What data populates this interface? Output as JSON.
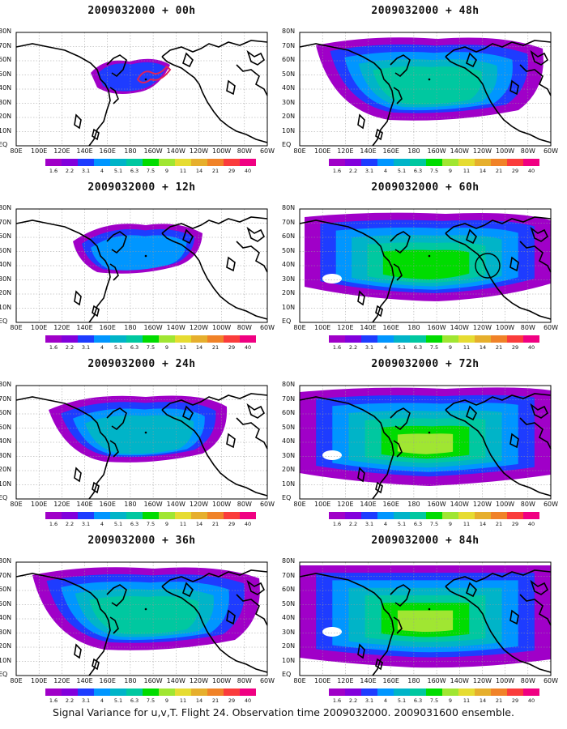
{
  "panels": [
    {
      "title": "2009032000 + 00h",
      "level": 1,
      "circle": false,
      "track": true
    },
    {
      "title": "2009032000 + 48h",
      "level": 4,
      "circle": false,
      "track": false
    },
    {
      "title": "2009032000 + 12h",
      "level": 2,
      "circle": false,
      "track": false
    },
    {
      "title": "2009032000 + 60h",
      "level": 5,
      "circle": true,
      "track": false
    },
    {
      "title": "2009032000 + 24h",
      "level": 3,
      "circle": false,
      "track": false
    },
    {
      "title": "2009032000 + 72h",
      "level": 6,
      "circle": false,
      "track": false
    },
    {
      "title": "2009032000 + 36h",
      "level": 3.5,
      "circle": false,
      "track": false
    },
    {
      "title": "2009032000 + 84h",
      "level": 7,
      "circle": false,
      "track": false
    }
  ],
  "lat_labels": [
    "80N",
    "70N",
    "60N",
    "50N",
    "40N",
    "30N",
    "20N",
    "10N",
    "EQ"
  ],
  "lon_labels": [
    "80E",
    "100E",
    "120E",
    "140E",
    "160E",
    "180",
    "160W",
    "140W",
    "120W",
    "100W",
    "80W",
    "60W"
  ],
  "colorbar": {
    "labels": [
      "1.6",
      "2.2",
      "3.1",
      "4",
      "5.1",
      "6.3",
      "7.5",
      "9",
      "11",
      "14",
      "21",
      "29",
      "40"
    ],
    "colors": [
      "#a000c8",
      "#8200dc",
      "#1e3cff",
      "#0096ff",
      "#00b4c8",
      "#00c8a0",
      "#00dc00",
      "#a0e632",
      "#e6dc32",
      "#e6af2d",
      "#f08228",
      "#fa3c3c",
      "#f00082"
    ]
  },
  "caption": "Signal Variance for u,v,T. Flight 24. Observation time 2009032000. 2009031600 ensemble."
}
